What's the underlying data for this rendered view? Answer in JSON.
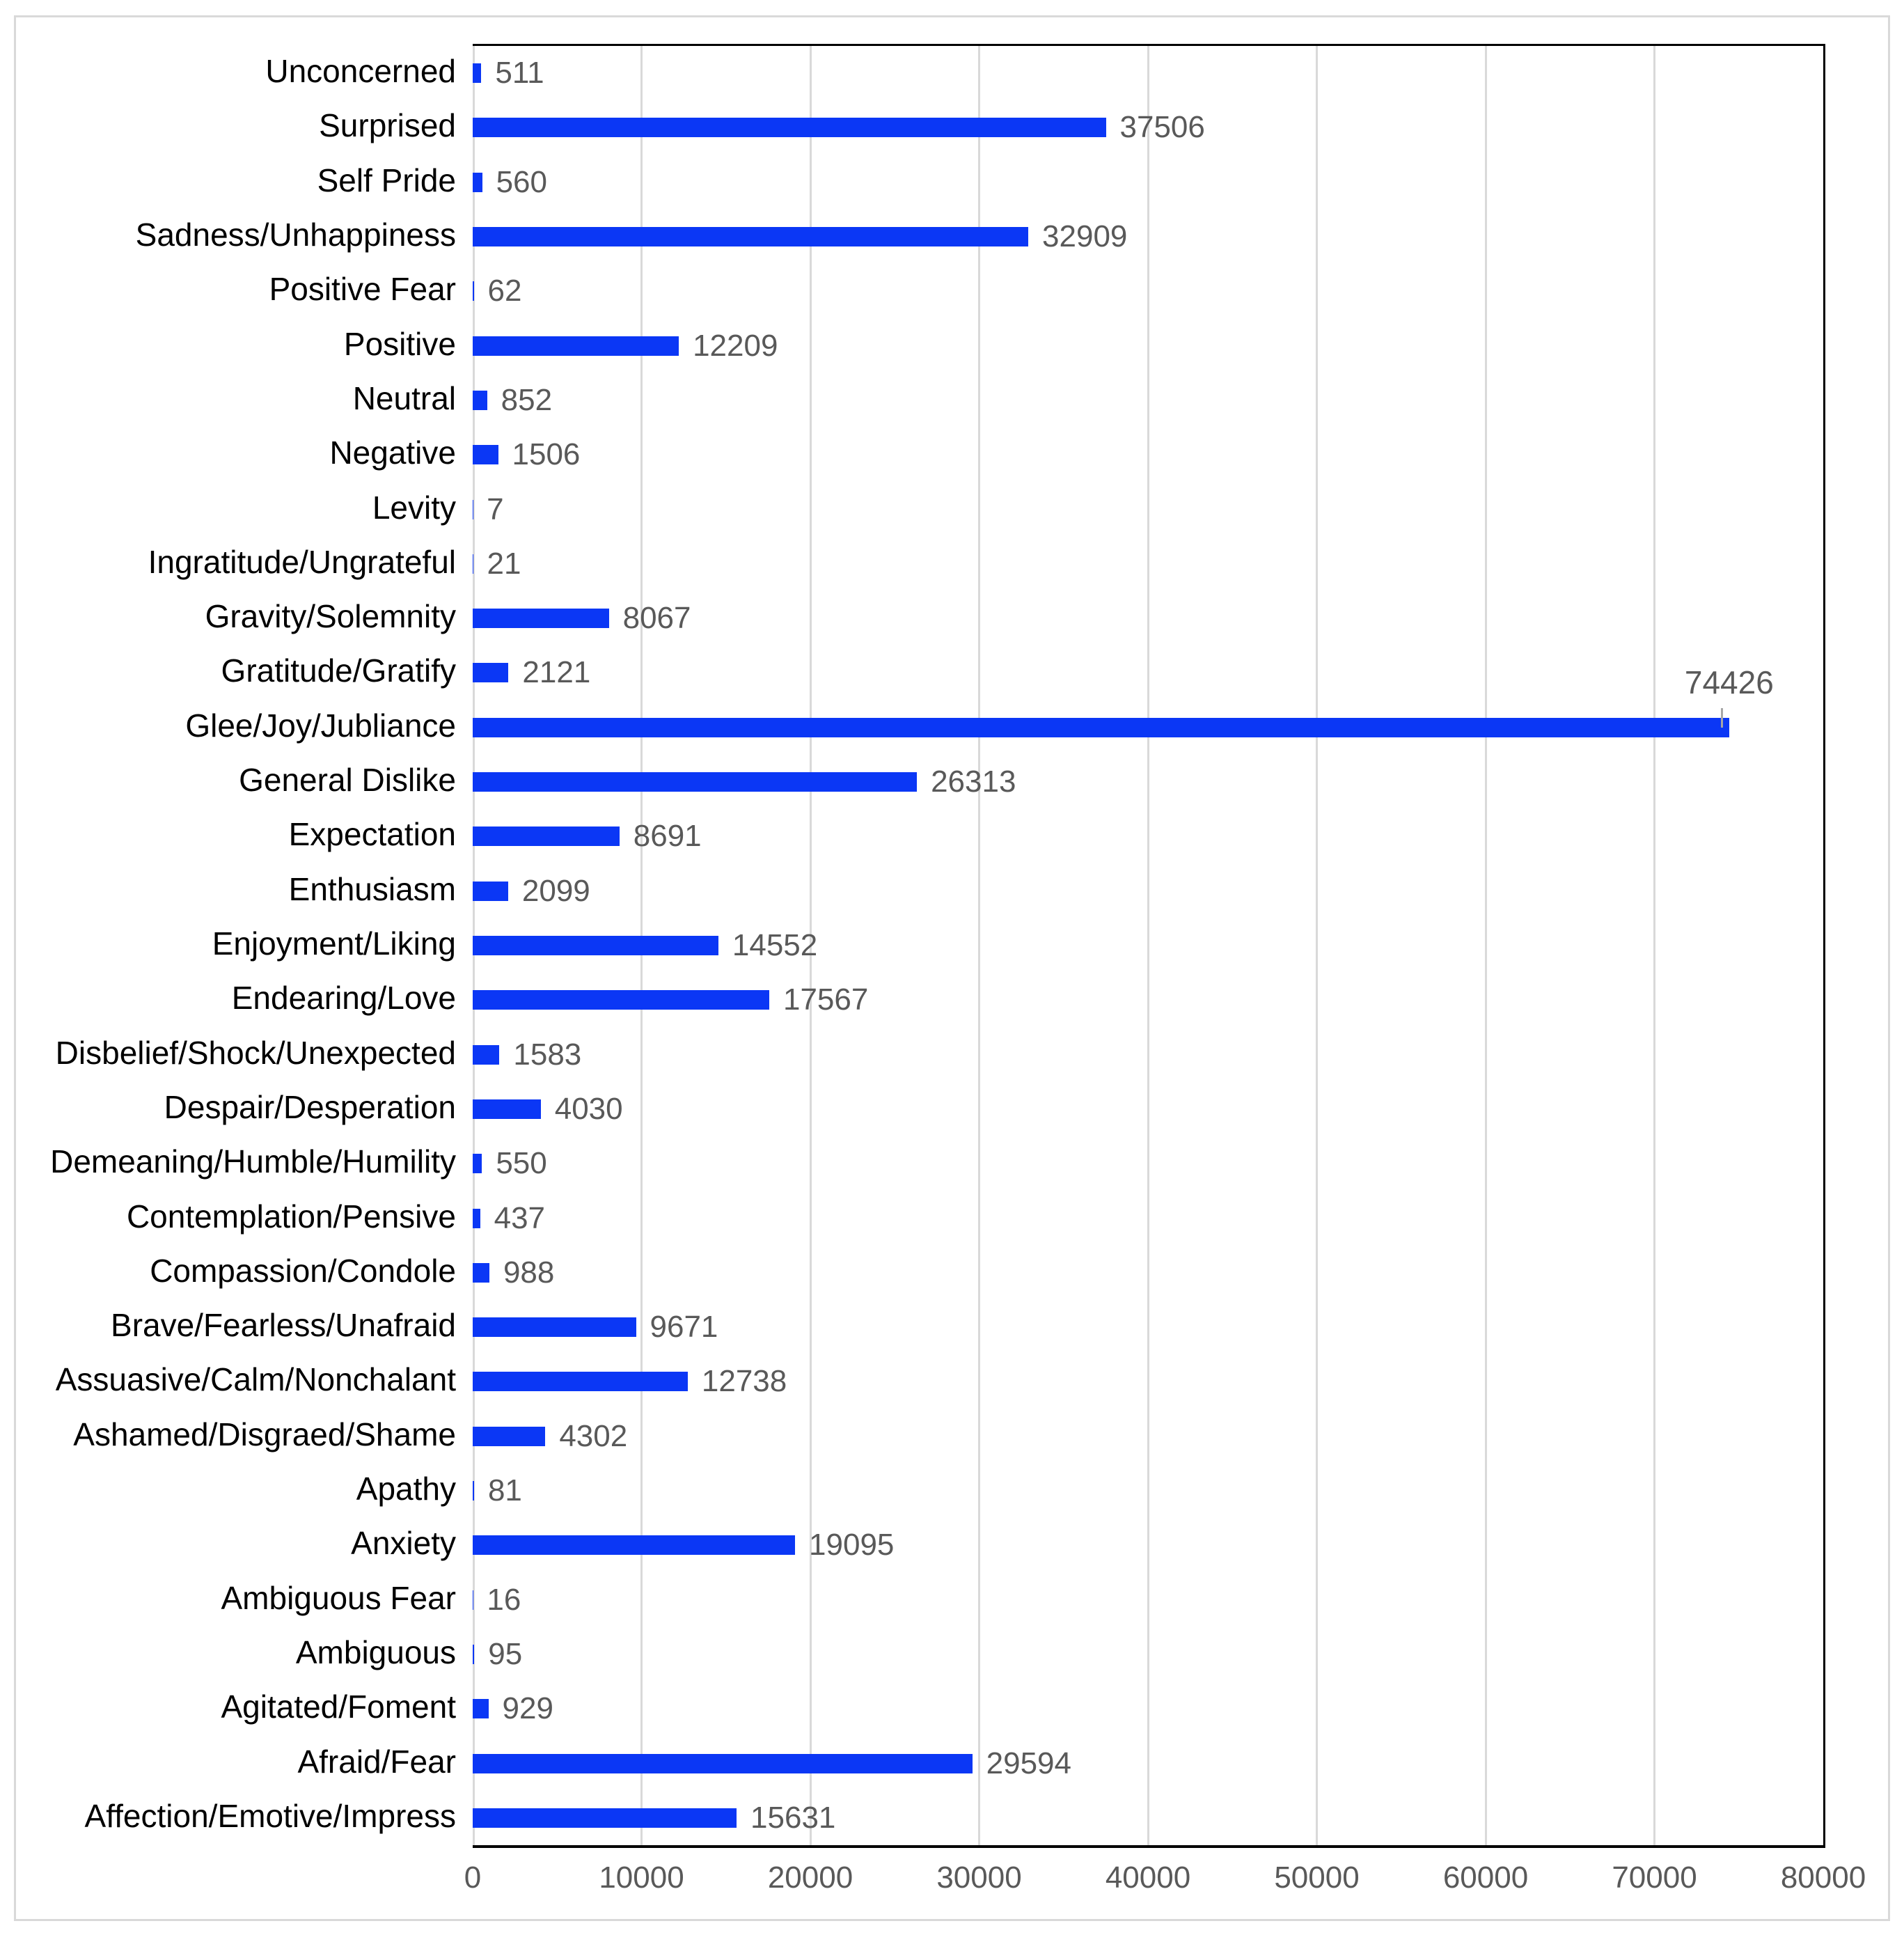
{
  "figure": {
    "title": "",
    "background_color": "#ffffff",
    "border_color": "#d9d9d9"
  },
  "chart_data": {
    "type": "bar",
    "orientation": "horizontal",
    "title": "",
    "xlabel": "",
    "ylabel": "",
    "categories": [
      "Unconcerned",
      "Surprised",
      "Self Pride",
      "Sadness/Unhappiness",
      "Positive Fear",
      "Positive",
      "Neutral",
      "Negative",
      "Levity",
      "Ingratitude/Ungrateful",
      "Gravity/Solemnity",
      "Gratitude/Gratify",
      "Glee/Joy/Jubliance",
      "General Dislike",
      "Expectation",
      "Enthusiasm",
      "Enjoyment/Liking",
      "Endearing/Love",
      "Disbelief/Shock/Unexpected",
      "Despair/Desperation",
      "Demeaning/Humble/Humility",
      "Contemplation/Pensive",
      "Compassion/Condole",
      "Brave/Fearless/Unafraid",
      "Assuasive/Calm/Nonchalant",
      "Ashamed/Disgraed/Shame",
      "Apathy",
      "Anxiety",
      "Ambiguous Fear",
      "Ambiguous",
      "Agitated/Foment",
      "Afraid/Fear",
      "Affection/Emotive/Impress"
    ],
    "values": [
      511,
      37506,
      560,
      32909,
      62,
      12209,
      852,
      1506,
      7,
      21,
      8067,
      2121,
      74426,
      26313,
      8691,
      2099,
      14552,
      17567,
      1583,
      4030,
      550,
      437,
      988,
      9671,
      12738,
      4302,
      81,
      19095,
      16,
      95,
      929,
      29594,
      15631
    ],
    "xlim": [
      0,
      80000
    ],
    "x_ticks": [
      "0",
      "10000",
      "20000",
      "30000",
      "40000",
      "50000",
      "60000",
      "70000",
      "80000"
    ],
    "grid": "vertical",
    "legend": "none",
    "bar_color": "#0b37f5",
    "value_label_color": "#595959",
    "category_label_color": "#000000",
    "gridline_color": "#d9d9d9",
    "axis_line_color": "#000000",
    "callout_leader_color": "#a6a6a6",
    "callout_category": "Glee/Joy/Jubliance"
  }
}
